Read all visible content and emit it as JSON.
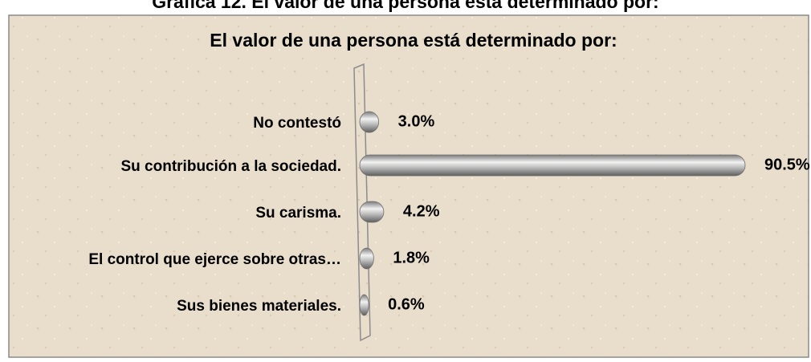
{
  "caption": "Gráfica 12. El valor de una persona está determinado por:",
  "chart_data": {
    "type": "bar",
    "orientation": "horizontal",
    "title": "El valor de una persona está determinado por:",
    "categories": [
      "No contestó",
      "Su contribución a la sociedad.",
      "Su carisma.",
      "El control que ejerce sobre otras…",
      "Sus bienes materiales."
    ],
    "values": [
      3.0,
      90.5,
      4.2,
      1.8,
      0.6
    ],
    "value_labels": [
      "3.0%",
      "90.5%",
      "4.2%",
      "1.8%",
      "0.6%"
    ],
    "color": "#a6a6a6"
  }
}
